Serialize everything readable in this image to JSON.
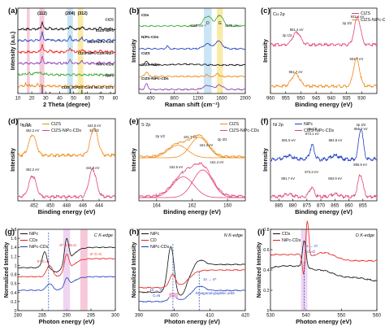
{
  "colors": {
    "black": "#111111",
    "red": "#e8211b",
    "blue": "#1f3fbf",
    "pink": "#e2437c",
    "orange": "#ee8a17",
    "green": "#3aa935",
    "purple": "#8a3db0",
    "band_pink": "#f4b6cd",
    "band_blue": "#b8dcf0",
    "band_yellow": "#f7e38b",
    "band_lilac": "#e8c7ee"
  },
  "chart_data": [
    {
      "id": "a",
      "type": "line",
      "panel_label": "(a)",
      "xlabel": "2 Theta (degree)",
      "ylabel": "Intensity (a.u.)",
      "xlim": [
        10,
        80
      ],
      "xticks": [
        10,
        20,
        30,
        40,
        50,
        60,
        70,
        80
      ],
      "annotations": [
        "(112)",
        "(204)",
        "(312)"
      ],
      "series": [
        {
          "name": "CIZS",
          "color": "#111111"
        },
        {
          "name": "CIZS-NiPc",
          "color": "#1f3fbf"
        },
        {
          "name": "CIZS-NiPc-CDs",
          "color": "#e8211b"
        },
        {
          "name": "CIZS-NiPc-CDs-Ni2+",
          "color": "#8a3db0"
        },
        {
          "name": "NiPc-CDs",
          "color": "#3aa935"
        },
        {
          "name": "NiPc",
          "color": "#ee8a17"
        },
        {
          "name": "CIZS JCPDS Card No.47-1371",
          "color": "#111111"
        }
      ],
      "peaks_x": [
        27.5,
        47.5,
        56.0
      ],
      "bands": [
        {
          "x": [
            16.5,
            18.5
          ],
          "color": "pink"
        },
        {
          "x": [
            25.5,
            29.0
          ],
          "color": "pink"
        },
        {
          "x": [
            45.5,
            49.5
          ],
          "color": "blue"
        },
        {
          "x": [
            53.0,
            57.0
          ],
          "color": "yellow"
        }
      ]
    },
    {
      "id": "b",
      "type": "line",
      "panel_label": "(b)",
      "xlabel": "Raman shift (cm⁻¹)",
      "ylabel": "Intensity",
      "xlim": [
        200,
        2000
      ],
      "xticks": [
        400,
        800,
        1200,
        1600,
        2000
      ],
      "series": [
        {
          "name": "CDs",
          "color": "#3aa935"
        },
        {
          "name": "NiPc-CDs",
          "color": "#1f3fbf"
        },
        {
          "name": "CIZS",
          "color": "#111111"
        },
        {
          "name": "CIZS-NiPc",
          "color": "#ee8a17"
        },
        {
          "name": "CIZS-NiPc-CDs",
          "color": "#8a3db0"
        }
      ],
      "peaks": [
        {
          "label": "D",
          "x": 1365
        },
        {
          "label": "G",
          "x": 1570
        }
      ],
      "annotations": [
        "1365 cm⁻¹",
        "1570 cm⁻¹"
      ]
    },
    {
      "id": "c",
      "type": "line",
      "panel_label": "(c)",
      "title": "Cu 2p",
      "xlabel": "Binding energy (eV)",
      "ylabel": "Intensity",
      "xlim": [
        960,
        925
      ],
      "xticks": [
        960,
        955,
        950,
        945,
        940,
        935,
        930
      ],
      "series": [
        {
          "name": "CIZS",
          "color": "#e2437c"
        },
        {
          "name": "CIZS-NiPc-CDs",
          "color": "#ee8a17"
        }
      ],
      "peaks": [
        {
          "label": "2p 1/2",
          "series": "CIZS",
          "x": 951.4,
          "text": "951.4 eV"
        },
        {
          "label": "2p 3/2",
          "series": "CIZS",
          "x": 931.4,
          "text": "931.4 eV"
        },
        {
          "label": "2p 1/2",
          "series": "CIZS-NiPc-CDs",
          "x": 951.7,
          "text": "951.7 eV"
        },
        {
          "label": "2p 3/2",
          "series": "CIZS-NiPc-CDs",
          "x": 931.7,
          "text": "931.7 eV"
        }
      ]
    },
    {
      "id": "d",
      "type": "line",
      "panel_label": "(d)",
      "title": "In 3d",
      "xlabel": "Binding energy (eV)",
      "ylabel": "Intensity",
      "xlim": [
        454,
        442
      ],
      "xticks": [
        452,
        450,
        448,
        446,
        444
      ],
      "series": [
        {
          "name": "CIZS",
          "color": "#ee8a17"
        },
        {
          "name": "CIZS-NiPc-CDs",
          "color": "#e2437c"
        }
      ],
      "peaks": [
        {
          "label": "3d 3/2",
          "series": "CIZS",
          "x": 452.2,
          "text": "452.2 eV"
        },
        {
          "label": "3d 5/2",
          "series": "CIZS",
          "x": 444.6,
          "text": "444.6 eV"
        },
        {
          "label": "3d 3/2",
          "series": "CIZS-NiPc-CDs",
          "x": 452.2,
          "text": "452.2 eV"
        },
        {
          "label": "3d 5/2",
          "series": "CIZS-NiPc-CDs",
          "x": 444.8,
          "text": "444.8 eV"
        }
      ]
    },
    {
      "id": "e",
      "type": "line",
      "panel_label": "(e)",
      "title": "S 2p",
      "xlabel": "Binding energy (eV)",
      "ylabel": "Intensity",
      "xlim": [
        165,
        159
      ],
      "xticks": [
        164,
        162,
        160
      ],
      "series": [
        {
          "name": "CIZS",
          "color": "#ee8a17"
        },
        {
          "name": "CIZS-NiPc-CDs",
          "color": "#e2437c"
        }
      ],
      "peaks": [
        {
          "label": "2p 1/2",
          "series": "CIZS",
          "x": 162.8,
          "text": "162.8 eV"
        },
        {
          "label": "",
          "series": "CIZS",
          "x": 161.7,
          "text": "161.7 eV"
        },
        {
          "label": "2p 3/2",
          "series": "CIZS",
          "x": 161.2,
          "text": "161.2 eV"
        },
        {
          "label": "",
          "series": "CIZS-NiPc-CDs",
          "x": 162.5,
          "text": "162.5 eV"
        },
        {
          "label": "",
          "series": "CIZS-NiPc-CDs",
          "x": 161.4,
          "text": "161.4 eV"
        }
      ]
    },
    {
      "id": "f",
      "type": "line",
      "panel_label": "(f)",
      "title": "Ni 2p",
      "xlabel": "Binding energy (eV)",
      "ylabel": "Intensity",
      "xlim": [
        888,
        850
      ],
      "xticks": [
        885,
        880,
        875,
        870,
        865,
        860,
        855
      ],
      "series": [
        {
          "name": "NiPc",
          "color": "#1f3fbf"
        },
        {
          "name": "CIZS-NiPc-CDs",
          "color": "#e2437c"
        }
      ],
      "peaks": [
        {
          "series": "NiPc",
          "x": 881.5,
          "text": "881.5 eV"
        },
        {
          "series": "NiPc",
          "x": 873.1,
          "text": "873.1 eV",
          "label": "2p 1/2"
        },
        {
          "series": "NiPc",
          "x": 864.8,
          "text": "864.8 eV"
        },
        {
          "series": "NiPc",
          "x": 855.7,
          "text": "855.7 eV",
          "label": "2p 3/2"
        },
        {
          "series": "CIZS-NiPc-CDs",
          "x": 881.7,
          "text": "881.7 eV"
        },
        {
          "series": "CIZS-NiPc-CDs",
          "x": 873.3,
          "text": "873.3 eV"
        },
        {
          "series": "CIZS-NiPc-CDs",
          "x": 864.9,
          "text": "864.9 eV"
        },
        {
          "series": "CIZS-NiPc-CDs",
          "x": 855.9,
          "text": "855.9 eV"
        }
      ]
    },
    {
      "id": "g",
      "type": "line",
      "panel_label": "(g)",
      "title": "C K-edge",
      "xlabel": "Photon energy (eV)",
      "ylabel": "Normalized Intensity",
      "xlim": [
        280,
        300
      ],
      "xticks": [
        280,
        285,
        290,
        295,
        300
      ],
      "ylim": [
        0.0,
        1.8
      ],
      "yticks": [
        0.0,
        0.2,
        0.4,
        0.6,
        0.8,
        1.0,
        1.2,
        1.4,
        1.6,
        1.8
      ],
      "series": [
        {
          "name": "NiPc",
          "color": "#111111"
        },
        {
          "name": "CDs",
          "color": "#e8211b"
        },
        {
          "name": "NiPc-CDs",
          "color": "#1f3fbf"
        }
      ],
      "annotations": [
        {
          "text": "π* C=C",
          "x": 286.0
        },
        {
          "text": "π* C–N=C",
          "x": 290.0
        },
        {
          "text": "σ* C–C",
          "x": 293.5
        }
      ]
    },
    {
      "id": "h",
      "type": "line",
      "panel_label": "(h)",
      "title": "N K-edge",
      "xlabel": "Photon energy (eV)",
      "ylabel": "Normalized Intensity",
      "xlim": [
        390,
        420
      ],
      "xticks": [
        390,
        400,
        410,
        420
      ],
      "series": [
        {
          "name": "NiPc",
          "color": "#111111"
        },
        {
          "name": "CD",
          "color": "#e8211b"
        },
        {
          "name": "NiPc-CDs",
          "color": "#1f3fbf"
        }
      ],
      "annotations": [
        {
          "text": "1s → π*",
          "x": 399.5
        },
        {
          "text": "C=N",
          "x": 399.5
        },
        {
          "text": "1s → σ*",
          "x": 408.0
        },
        {
          "text": "hexagonal-graphitic units",
          "x": 408.0
        }
      ]
    },
    {
      "id": "i",
      "type": "line",
      "panel_label": "(i)",
      "title": "O K-edge",
      "xlabel": "Photon energy (eV)",
      "ylabel": "Normalized Intensity",
      "xlim": [
        530,
        560
      ],
      "xticks": [
        530,
        540,
        550,
        560
      ],
      "ylim": [
        0.0,
        0.8
      ],
      "yticks": [
        0.0,
        0.2,
        0.4,
        0.6,
        0.8
      ],
      "series": [
        {
          "name": "CDs",
          "color": "#111111"
        },
        {
          "name": "NiPc-CDs",
          "color": "#e8211b"
        }
      ],
      "annotations": [
        {
          "text": "1s → π*",
          "x": 539.5
        },
        {
          "text": "C=O",
          "x": 539.5
        }
      ]
    }
  ]
}
